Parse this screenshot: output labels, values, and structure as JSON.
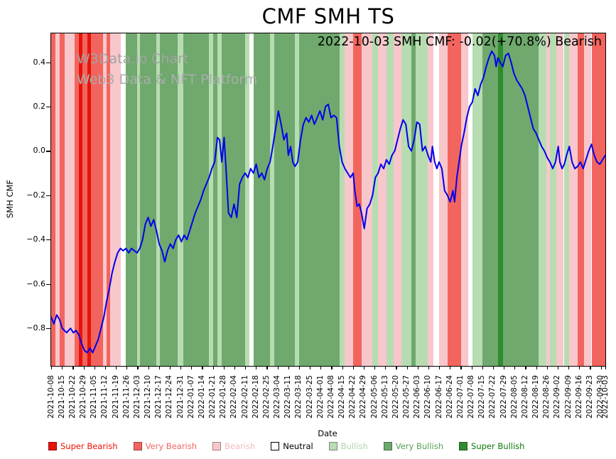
{
  "title": "CMF SMH TS",
  "annotation": "2022-10-03 SMH CMF: -0.02(+70.8%) Bearish",
  "watermark": {
    "line1": "W3Data.io Chart",
    "line2": "Web3 Data & NFT Platform"
  },
  "axes": {
    "x_label": "Date",
    "y_label": "SMH CMF"
  },
  "colors": {
    "super_bearish": "#e81309",
    "very_bearish": "#f2655e",
    "bearish": "#f8c7cb",
    "neutral": "#ffffff",
    "bullish": "#b7dcb2",
    "very_bullish": "#6fa96d",
    "super_bullish": "#2f8b2f",
    "line": "#0000ee"
  },
  "legend": [
    {
      "key": "super_bearish",
      "label": "Super Bearish",
      "text_color": "#ee1100"
    },
    {
      "key": "very_bearish",
      "label": "Very Bearish",
      "text_color": "#f2655e"
    },
    {
      "key": "bearish",
      "label": "Bearish",
      "text_color": "#f5b9bd"
    },
    {
      "key": "neutral",
      "label": "Neutral",
      "text_color": "#000000"
    },
    {
      "key": "bullish",
      "label": "Bullish",
      "text_color": "#aed4a9"
    },
    {
      "key": "very_bullish",
      "label": "Very Bullish",
      "text_color": "#55a055"
    },
    {
      "key": "super_bullish",
      "label": "Super Bullish",
      "text_color": "#0b7a0b"
    }
  ],
  "chart_data": {
    "type": "line",
    "title": "CMF SMH TS",
    "xlabel": "Date",
    "ylabel": "SMH CMF",
    "ylim": [
      -0.97,
      0.53
    ],
    "y_ticks": [
      0.4,
      0.2,
      0.0,
      -0.2,
      -0.4,
      -0.6,
      -0.8
    ],
    "x_range": [
      "2021-10-08",
      "2022-10-03"
    ],
    "x_unit": "fraction_of_date_range",
    "x_tick_labels": [
      "2021-10-08",
      "2021-10-15",
      "2021-10-22",
      "2021-10-29",
      "2021-11-05",
      "2021-11-12",
      "2021-11-19",
      "2021-11-26",
      "2021-12-03",
      "2021-12-10",
      "2021-12-17",
      "2021-12-24",
      "2021-12-31",
      "2022-01-07",
      "2022-01-14",
      "2022-01-21",
      "2022-01-28",
      "2022-02-04",
      "2022-02-11",
      "2022-02-18",
      "2022-02-25",
      "2022-03-04",
      "2022-03-11",
      "2022-03-18",
      "2022-03-25",
      "2022-04-01",
      "2022-04-08",
      "2022-04-15",
      "2022-04-22",
      "2022-04-29",
      "2022-05-06",
      "2022-05-13",
      "2022-05-20",
      "2022-05-27",
      "2022-06-03",
      "2022-06-10",
      "2022-06-17",
      "2022-06-24",
      "2022-07-01",
      "2022-07-08",
      "2022-07-15",
      "2022-07-22",
      "2022-07-29",
      "2022-08-05",
      "2022-08-12",
      "2022-08-19",
      "2022-08-26",
      "2022-09-02",
      "2022-09-09",
      "2022-09-16",
      "2022-09-23",
      "2022-09-30",
      "2022-10-03"
    ],
    "series": [
      {
        "name": "SMH CMF",
        "points": [
          [
            0.0,
            -0.75
          ],
          [
            0.005,
            -0.78
          ],
          [
            0.01,
            -0.74
          ],
          [
            0.015,
            -0.76
          ],
          [
            0.02,
            -0.8
          ],
          [
            0.028,
            -0.82
          ],
          [
            0.035,
            -0.8
          ],
          [
            0.04,
            -0.82
          ],
          [
            0.045,
            -0.81
          ],
          [
            0.05,
            -0.83
          ],
          [
            0.055,
            -0.87
          ],
          [
            0.06,
            -0.9
          ],
          [
            0.065,
            -0.91
          ],
          [
            0.07,
            -0.89
          ],
          [
            0.075,
            -0.91
          ],
          [
            0.08,
            -0.88
          ],
          [
            0.085,
            -0.85
          ],
          [
            0.09,
            -0.8
          ],
          [
            0.095,
            -0.75
          ],
          [
            0.1,
            -0.68
          ],
          [
            0.105,
            -0.62
          ],
          [
            0.11,
            -0.55
          ],
          [
            0.115,
            -0.5
          ],
          [
            0.12,
            -0.46
          ],
          [
            0.125,
            -0.44
          ],
          [
            0.13,
            -0.45
          ],
          [
            0.135,
            -0.44
          ],
          [
            0.14,
            -0.46
          ],
          [
            0.145,
            -0.44
          ],
          [
            0.15,
            -0.45
          ],
          [
            0.155,
            -0.46
          ],
          [
            0.16,
            -0.44
          ],
          [
            0.165,
            -0.4
          ],
          [
            0.17,
            -0.33
          ],
          [
            0.175,
            -0.3
          ],
          [
            0.18,
            -0.34
          ],
          [
            0.185,
            -0.31
          ],
          [
            0.19,
            -0.36
          ],
          [
            0.195,
            -0.42
          ],
          [
            0.2,
            -0.45
          ],
          [
            0.205,
            -0.5
          ],
          [
            0.21,
            -0.45
          ],
          [
            0.215,
            -0.42
          ],
          [
            0.22,
            -0.44
          ],
          [
            0.225,
            -0.4
          ],
          [
            0.23,
            -0.38
          ],
          [
            0.235,
            -0.41
          ],
          [
            0.24,
            -0.38
          ],
          [
            0.245,
            -0.4
          ],
          [
            0.25,
            -0.36
          ],
          [
            0.255,
            -0.32
          ],
          [
            0.26,
            -0.28
          ],
          [
            0.265,
            -0.25
          ],
          [
            0.27,
            -0.22
          ],
          [
            0.275,
            -0.18
          ],
          [
            0.28,
            -0.15
          ],
          [
            0.285,
            -0.12
          ],
          [
            0.29,
            -0.08
          ],
          [
            0.295,
            -0.05
          ],
          [
            0.3,
            0.06
          ],
          [
            0.304,
            0.05
          ],
          [
            0.308,
            -0.05
          ],
          [
            0.312,
            0.06
          ],
          [
            0.316,
            -0.1
          ],
          [
            0.32,
            -0.28
          ],
          [
            0.325,
            -0.3
          ],
          [
            0.33,
            -0.24
          ],
          [
            0.335,
            -0.3
          ],
          [
            0.34,
            -0.15
          ],
          [
            0.345,
            -0.12
          ],
          [
            0.35,
            -0.1
          ],
          [
            0.355,
            -0.12
          ],
          [
            0.36,
            -0.08
          ],
          [
            0.365,
            -0.1
          ],
          [
            0.37,
            -0.06
          ],
          [
            0.375,
            -0.12
          ],
          [
            0.38,
            -0.1
          ],
          [
            0.385,
            -0.13
          ],
          [
            0.39,
            -0.08
          ],
          [
            0.395,
            -0.05
          ],
          [
            0.4,
            0.02
          ],
          [
            0.405,
            0.1
          ],
          [
            0.41,
            0.18
          ],
          [
            0.415,
            0.12
          ],
          [
            0.42,
            0.05
          ],
          [
            0.425,
            0.08
          ],
          [
            0.428,
            -0.02
          ],
          [
            0.432,
            0.02
          ],
          [
            0.436,
            -0.05
          ],
          [
            0.44,
            -0.07
          ],
          [
            0.445,
            -0.05
          ],
          [
            0.45,
            0.05
          ],
          [
            0.455,
            0.12
          ],
          [
            0.46,
            0.15
          ],
          [
            0.465,
            0.13
          ],
          [
            0.47,
            0.16
          ],
          [
            0.475,
            0.12
          ],
          [
            0.48,
            0.15
          ],
          [
            0.485,
            0.18
          ],
          [
            0.49,
            0.14
          ],
          [
            0.495,
            0.2
          ],
          [
            0.5,
            0.21
          ],
          [
            0.505,
            0.15
          ],
          [
            0.51,
            0.16
          ],
          [
            0.515,
            0.15
          ],
          [
            0.52,
            0.02
          ],
          [
            0.525,
            -0.05
          ],
          [
            0.53,
            -0.08
          ],
          [
            0.535,
            -0.1
          ],
          [
            0.54,
            -0.12
          ],
          [
            0.545,
            -0.1
          ],
          [
            0.548,
            -0.18
          ],
          [
            0.552,
            -0.25
          ],
          [
            0.556,
            -0.24
          ],
          [
            0.56,
            -0.28
          ],
          [
            0.565,
            -0.35
          ],
          [
            0.57,
            -0.26
          ],
          [
            0.575,
            -0.24
          ],
          [
            0.58,
            -0.2
          ],
          [
            0.585,
            -0.12
          ],
          [
            0.59,
            -0.1
          ],
          [
            0.595,
            -0.06
          ],
          [
            0.6,
            -0.08
          ],
          [
            0.605,
            -0.04
          ],
          [
            0.61,
            -0.06
          ],
          [
            0.615,
            -0.02
          ],
          [
            0.62,
            0.0
          ],
          [
            0.625,
            0.05
          ],
          [
            0.63,
            0.1
          ],
          [
            0.635,
            0.14
          ],
          [
            0.64,
            0.12
          ],
          [
            0.645,
            0.02
          ],
          [
            0.65,
            0.0
          ],
          [
            0.655,
            0.05
          ],
          [
            0.66,
            0.13
          ],
          [
            0.665,
            0.12
          ],
          [
            0.67,
            0.0
          ],
          [
            0.675,
            0.02
          ],
          [
            0.68,
            -0.02
          ],
          [
            0.685,
            -0.05
          ],
          [
            0.688,
            0.02
          ],
          [
            0.692,
            -0.05
          ],
          [
            0.696,
            -0.08
          ],
          [
            0.7,
            -0.05
          ],
          [
            0.705,
            -0.08
          ],
          [
            0.71,
            -0.18
          ],
          [
            0.715,
            -0.2
          ],
          [
            0.72,
            -0.23
          ],
          [
            0.725,
            -0.18
          ],
          [
            0.728,
            -0.23
          ],
          [
            0.732,
            -0.12
          ],
          [
            0.736,
            -0.05
          ],
          [
            0.74,
            0.02
          ],
          [
            0.745,
            0.08
          ],
          [
            0.75,
            0.15
          ],
          [
            0.755,
            0.2
          ],
          [
            0.76,
            0.22
          ],
          [
            0.765,
            0.28
          ],
          [
            0.77,
            0.25
          ],
          [
            0.775,
            0.3
          ],
          [
            0.78,
            0.33
          ],
          [
            0.785,
            0.38
          ],
          [
            0.79,
            0.42
          ],
          [
            0.795,
            0.45
          ],
          [
            0.8,
            0.43
          ],
          [
            0.803,
            0.38
          ],
          [
            0.806,
            0.42
          ],
          [
            0.81,
            0.4
          ],
          [
            0.815,
            0.38
          ],
          [
            0.82,
            0.43
          ],
          [
            0.825,
            0.44
          ],
          [
            0.83,
            0.4
          ],
          [
            0.835,
            0.35
          ],
          [
            0.84,
            0.32
          ],
          [
            0.845,
            0.3
          ],
          [
            0.85,
            0.28
          ],
          [
            0.855,
            0.25
          ],
          [
            0.86,
            0.2
          ],
          [
            0.865,
            0.15
          ],
          [
            0.87,
            0.1
          ],
          [
            0.875,
            0.08
          ],
          [
            0.88,
            0.05
          ],
          [
            0.885,
            0.02
          ],
          [
            0.89,
            0.0
          ],
          [
            0.895,
            -0.03
          ],
          [
            0.9,
            -0.05
          ],
          [
            0.905,
            -0.08
          ],
          [
            0.91,
            -0.05
          ],
          [
            0.915,
            0.02
          ],
          [
            0.918,
            -0.05
          ],
          [
            0.922,
            -0.08
          ],
          [
            0.926,
            -0.06
          ],
          [
            0.93,
            -0.02
          ],
          [
            0.935,
            0.02
          ],
          [
            0.94,
            -0.05
          ],
          [
            0.945,
            -0.08
          ],
          [
            0.95,
            -0.07
          ],
          [
            0.955,
            -0.05
          ],
          [
            0.96,
            -0.08
          ],
          [
            0.965,
            -0.04
          ],
          [
            0.97,
            0.0
          ],
          [
            0.975,
            0.03
          ],
          [
            0.98,
            -0.02
          ],
          [
            0.985,
            -0.05
          ],
          [
            0.99,
            -0.06
          ],
          [
            0.995,
            -0.04
          ],
          [
            1.0,
            -0.02
          ]
        ]
      }
    ],
    "background_bands": [
      [
        0.0,
        0.008,
        "very_bearish"
      ],
      [
        0.008,
        0.016,
        "bearish"
      ],
      [
        0.016,
        0.024,
        "very_bearish"
      ],
      [
        0.024,
        0.042,
        "bearish"
      ],
      [
        0.042,
        0.05,
        "very_bearish"
      ],
      [
        0.05,
        0.056,
        "super_bearish"
      ],
      [
        0.056,
        0.066,
        "very_bearish"
      ],
      [
        0.066,
        0.072,
        "super_bearish"
      ],
      [
        0.072,
        0.094,
        "very_bearish"
      ],
      [
        0.094,
        0.1,
        "bearish"
      ],
      [
        0.1,
        0.106,
        "very_bearish"
      ],
      [
        0.106,
        0.126,
        "bearish"
      ],
      [
        0.126,
        0.135,
        "neutral"
      ],
      [
        0.135,
        0.155,
        "very_bullish"
      ],
      [
        0.155,
        0.16,
        "bullish"
      ],
      [
        0.16,
        0.19,
        "very_bullish"
      ],
      [
        0.19,
        0.196,
        "bullish"
      ],
      [
        0.196,
        0.228,
        "very_bullish"
      ],
      [
        0.228,
        0.238,
        "bullish"
      ],
      [
        0.238,
        0.285,
        "very_bullish"
      ],
      [
        0.285,
        0.292,
        "bullish"
      ],
      [
        0.292,
        0.3,
        "very_bullish"
      ],
      [
        0.3,
        0.308,
        "bullish"
      ],
      [
        0.308,
        0.35,
        "very_bullish"
      ],
      [
        0.35,
        0.358,
        "bullish"
      ],
      [
        0.358,
        0.365,
        "neutral"
      ],
      [
        0.365,
        0.395,
        "very_bullish"
      ],
      [
        0.395,
        0.402,
        "bullish"
      ],
      [
        0.402,
        0.44,
        "very_bullish"
      ],
      [
        0.44,
        0.448,
        "bullish"
      ],
      [
        0.448,
        0.52,
        "very_bullish"
      ],
      [
        0.52,
        0.53,
        "bullish"
      ],
      [
        0.53,
        0.545,
        "bearish"
      ],
      [
        0.545,
        0.56,
        "very_bearish"
      ],
      [
        0.56,
        0.58,
        "bearish"
      ],
      [
        0.58,
        0.59,
        "bullish"
      ],
      [
        0.59,
        0.605,
        "bearish"
      ],
      [
        0.605,
        0.618,
        "bullish"
      ],
      [
        0.618,
        0.632,
        "bearish"
      ],
      [
        0.632,
        0.65,
        "bullish"
      ],
      [
        0.65,
        0.658,
        "very_bullish"
      ],
      [
        0.658,
        0.68,
        "bullish"
      ],
      [
        0.68,
        0.69,
        "bearish"
      ],
      [
        0.69,
        0.7,
        "neutral"
      ],
      [
        0.7,
        0.715,
        "bearish"
      ],
      [
        0.715,
        0.74,
        "very_bearish"
      ],
      [
        0.74,
        0.752,
        "bearish"
      ],
      [
        0.752,
        0.76,
        "neutral"
      ],
      [
        0.76,
        0.778,
        "bullish"
      ],
      [
        0.778,
        0.806,
        "very_bullish"
      ],
      [
        0.806,
        0.816,
        "super_bullish"
      ],
      [
        0.816,
        0.88,
        "very_bullish"
      ],
      [
        0.88,
        0.893,
        "bullish"
      ],
      [
        0.893,
        0.9,
        "bearish"
      ],
      [
        0.9,
        0.912,
        "bullish"
      ],
      [
        0.912,
        0.925,
        "bearish"
      ],
      [
        0.925,
        0.935,
        "bullish"
      ],
      [
        0.935,
        0.95,
        "bearish"
      ],
      [
        0.95,
        0.962,
        "very_bearish"
      ],
      [
        0.962,
        0.975,
        "bearish"
      ],
      [
        0.975,
        1.0,
        "very_bearish"
      ]
    ],
    "legend_position": "bottom"
  }
}
